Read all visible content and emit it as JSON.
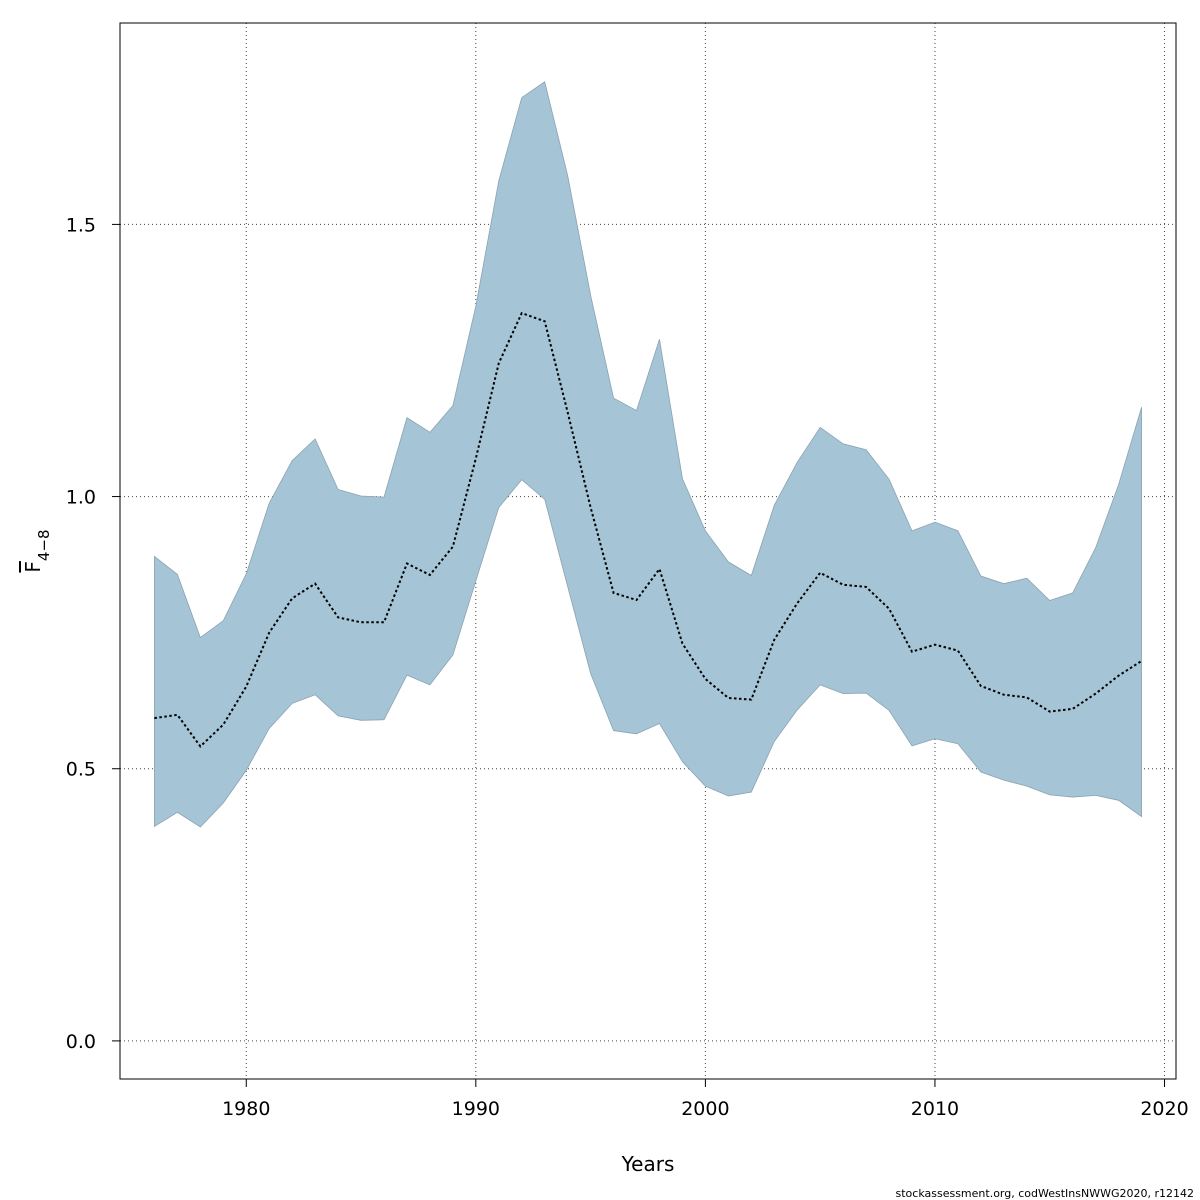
{
  "chart_data": {
    "type": "area",
    "xlabel": "Years",
    "ylabel": {
      "main": "F",
      "sub": "4−8"
    },
    "xlim": [
      1974.5,
      2020.5
    ],
    "ylim": [
      -0.07,
      1.87
    ],
    "xticks": [
      1980,
      1990,
      2000,
      2010,
      2020
    ],
    "yticks": [
      0.0,
      0.5,
      1.0,
      1.5
    ],
    "ytick_labels": [
      "0.0",
      "0.5",
      "1.0",
      "1.5"
    ],
    "grid": true,
    "band_color": "#a5c4d5",
    "line_color": "#000000",
    "x": [
      1976,
      1977,
      1978,
      1979,
      1980,
      1981,
      1982,
      1983,
      1984,
      1985,
      1986,
      1987,
      1988,
      1989,
      1990,
      1991,
      1992,
      1993,
      1994,
      1995,
      1996,
      1997,
      1998,
      1999,
      2000,
      2001,
      2002,
      2003,
      2004,
      2005,
      2006,
      2007,
      2008,
      2009,
      2010,
      2011,
      2012,
      2013,
      2014,
      2015,
      2016,
      2017,
      2018,
      2019
    ],
    "estimate": [
      0.593,
      0.599,
      0.541,
      0.581,
      0.651,
      0.75,
      0.813,
      0.84,
      0.778,
      0.769,
      0.769,
      0.877,
      0.856,
      0.908,
      1.07,
      1.245,
      1.337,
      1.322,
      1.155,
      0.98,
      0.823,
      0.81,
      0.867,
      0.73,
      0.665,
      0.63,
      0.627,
      0.737,
      0.804,
      0.86,
      0.838,
      0.834,
      0.794,
      0.715,
      0.728,
      0.717,
      0.652,
      0.636,
      0.631,
      0.605,
      0.61,
      0.638,
      0.671,
      0.698
    ],
    "upper": [
      0.89,
      0.857,
      0.741,
      0.772,
      0.858,
      0.988,
      1.066,
      1.106,
      1.013,
      1.001,
      0.999,
      1.145,
      1.118,
      1.167,
      1.35,
      1.58,
      1.733,
      1.762,
      1.59,
      1.37,
      1.181,
      1.158,
      1.289,
      1.033,
      0.937,
      0.88,
      0.855,
      0.984,
      1.063,
      1.127,
      1.097,
      1.086,
      1.032,
      0.937,
      0.953,
      0.937,
      0.854,
      0.84,
      0.85,
      0.809,
      0.823,
      0.906,
      1.022,
      1.164
    ],
    "lower": [
      0.394,
      0.42,
      0.393,
      0.437,
      0.497,
      0.574,
      0.62,
      0.636,
      0.597,
      0.589,
      0.59,
      0.672,
      0.654,
      0.709,
      0.845,
      0.98,
      1.031,
      0.995,
      0.835,
      0.675,
      0.57,
      0.564,
      0.583,
      0.513,
      0.468,
      0.45,
      0.457,
      0.55,
      0.608,
      0.654,
      0.638,
      0.639,
      0.607,
      0.542,
      0.555,
      0.546,
      0.494,
      0.479,
      0.468,
      0.452,
      0.448,
      0.451,
      0.442,
      0.412
    ]
  },
  "footer": "stockassessment.org, codWestInsNWWG2020, r12142"
}
